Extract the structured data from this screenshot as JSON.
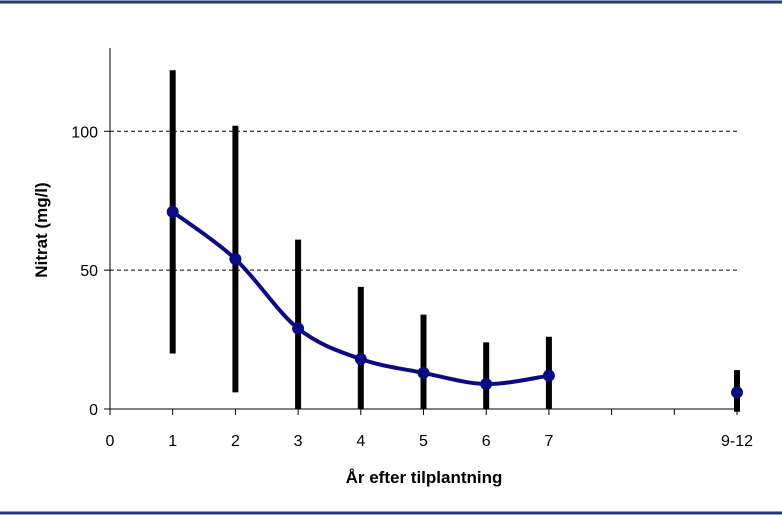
{
  "chart_data": {
    "type": "line",
    "title": "",
    "xlabel": "År efter tilplantning",
    "ylabel": "Nitrat (mg/l)",
    "xlim": [
      0,
      10
    ],
    "ylim": [
      0,
      130
    ],
    "x_ticks": [
      0,
      1,
      2,
      3,
      4,
      5,
      6,
      7,
      8,
      9,
      10
    ],
    "x_tick_labels": [
      {
        "x": 0,
        "label": "0"
      },
      {
        "x": 1,
        "label": "1"
      },
      {
        "x": 2,
        "label": "2"
      },
      {
        "x": 3,
        "label": "3"
      },
      {
        "x": 4,
        "label": "4"
      },
      {
        "x": 5,
        "label": "5"
      },
      {
        "x": 6,
        "label": "6"
      },
      {
        "x": 7,
        "label": "7"
      },
      {
        "x": 10,
        "label": "9-12"
      }
    ],
    "y_ticks": [
      {
        "value": 0,
        "label": "0"
      },
      {
        "value": 50,
        "label": "50"
      },
      {
        "value": 100,
        "label": "100"
      }
    ],
    "gridlines": [
      50,
      100
    ],
    "series": [
      {
        "values": [
          {
            "x": 1,
            "y": 71,
            "low": 20,
            "high": 122
          },
          {
            "x": 2,
            "y": 54,
            "low": 6,
            "high": 102
          },
          {
            "x": 3,
            "y": 29,
            "low": 0,
            "high": 61
          },
          {
            "x": 4,
            "y": 18,
            "low": 0,
            "high": 44
          },
          {
            "x": 5,
            "y": 13,
            "low": 0,
            "high": 34
          },
          {
            "x": 6,
            "y": 9,
            "low": 0,
            "high": 24
          },
          {
            "x": 7,
            "y": 12,
            "low": 0,
            "high": 26
          }
        ],
        "color": "#0a0a82"
      },
      {
        "values": [
          {
            "x": 10,
            "y": 6,
            "low": -1,
            "high": 14
          }
        ],
        "color": "#0a0a82"
      }
    ],
    "range_bar_color": "#000000",
    "grid_color": "#000000",
    "frame_rule_color": "#1f3a7a"
  }
}
